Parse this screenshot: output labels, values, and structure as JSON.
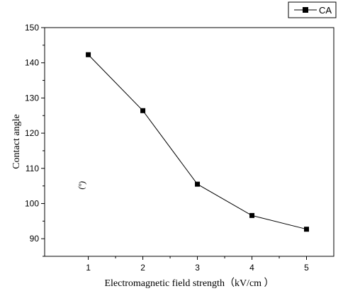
{
  "chart_data": {
    "type": "line",
    "x": [
      1,
      2,
      3,
      4,
      5
    ],
    "series": [
      {
        "name": "CA",
        "values": [
          142.3,
          126.4,
          105.5,
          96.6,
          92.7
        ],
        "color": "#000000",
        "marker": "square"
      }
    ],
    "xlabel": "Electromagnetic field strength（kV/cm ）",
    "ylabel": "Contact angle",
    "y_unit_mark": "(º)",
    "xlim": [
      0.2,
      5.5
    ],
    "ylim": [
      85,
      150
    ],
    "xticks": [
      1,
      2,
      3,
      4,
      5
    ],
    "yticks": [
      90,
      100,
      110,
      120,
      130,
      140,
      150
    ],
    "grid": false,
    "legend_position": "top-right"
  }
}
